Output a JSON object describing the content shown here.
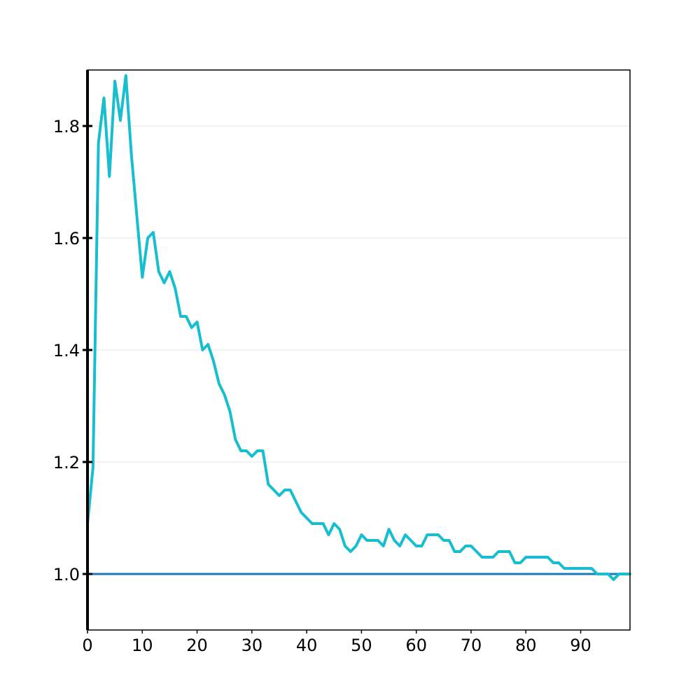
{
  "chart_data": {
    "type": "line",
    "title": "",
    "xlabel": "",
    "ylabel": "",
    "xlim": [
      0,
      99
    ],
    "ylim": [
      0.9,
      1.9
    ],
    "x_ticks": [
      0,
      10,
      20,
      30,
      40,
      50,
      60,
      70,
      80,
      90
    ],
    "x_tick_labels": [
      "0",
      "10",
      "20",
      "30",
      "40",
      "50",
      "60",
      "70",
      "80",
      "90"
    ],
    "y_ticks": [
      1.0,
      1.2,
      1.4,
      1.6,
      1.8
    ],
    "y_tick_labels": [
      "1.0",
      "1.2",
      "1.4",
      "1.6",
      "1.8"
    ],
    "grid": "horizontal",
    "legend": "none",
    "reference_line": {
      "y": 1.0,
      "color": "#1f77b4"
    },
    "series": [
      {
        "color": "#17becf",
        "x": [
          0,
          1,
          2,
          3,
          4,
          5,
          6,
          7,
          8,
          9,
          10,
          11,
          12,
          13,
          14,
          15,
          16,
          17,
          18,
          19,
          20,
          21,
          22,
          23,
          24,
          25,
          26,
          27,
          28,
          29,
          30,
          31,
          32,
          33,
          34,
          35,
          36,
          37,
          38,
          39,
          40,
          41,
          42,
          43,
          44,
          45,
          46,
          47,
          48,
          49,
          50,
          51,
          52,
          53,
          54,
          55,
          56,
          57,
          58,
          59,
          60,
          61,
          62,
          63,
          64,
          65,
          66,
          67,
          68,
          69,
          70,
          71,
          72,
          73,
          74,
          75,
          76,
          77,
          78,
          79,
          80,
          81,
          82,
          83,
          84,
          85,
          86,
          87,
          88,
          89,
          90,
          91,
          92,
          93,
          94,
          95,
          96,
          97,
          98,
          99
        ],
        "values": [
          1.09,
          1.19,
          1.77,
          1.85,
          1.71,
          1.88,
          1.81,
          1.89,
          1.75,
          1.64,
          1.53,
          1.6,
          1.61,
          1.54,
          1.52,
          1.54,
          1.51,
          1.46,
          1.46,
          1.44,
          1.45,
          1.4,
          1.41,
          1.38,
          1.34,
          1.32,
          1.29,
          1.24,
          1.22,
          1.22,
          1.21,
          1.22,
          1.22,
          1.16,
          1.15,
          1.14,
          1.15,
          1.15,
          1.13,
          1.11,
          1.1,
          1.09,
          1.09,
          1.09,
          1.07,
          1.09,
          1.08,
          1.05,
          1.04,
          1.05,
          1.07,
          1.06,
          1.06,
          1.06,
          1.05,
          1.08,
          1.06,
          1.05,
          1.07,
          1.06,
          1.05,
          1.05,
          1.07,
          1.07,
          1.07,
          1.06,
          1.06,
          1.04,
          1.04,
          1.05,
          1.05,
          1.04,
          1.03,
          1.03,
          1.03,
          1.04,
          1.04,
          1.04,
          1.02,
          1.02,
          1.03,
          1.03,
          1.03,
          1.03,
          1.03,
          1.02,
          1.02,
          1.01,
          1.01,
          1.01,
          1.01,
          1.01,
          1.01,
          1.0,
          1.0,
          1.0,
          0.99,
          1.0,
          1.0,
          1.0
        ]
      }
    ]
  }
}
